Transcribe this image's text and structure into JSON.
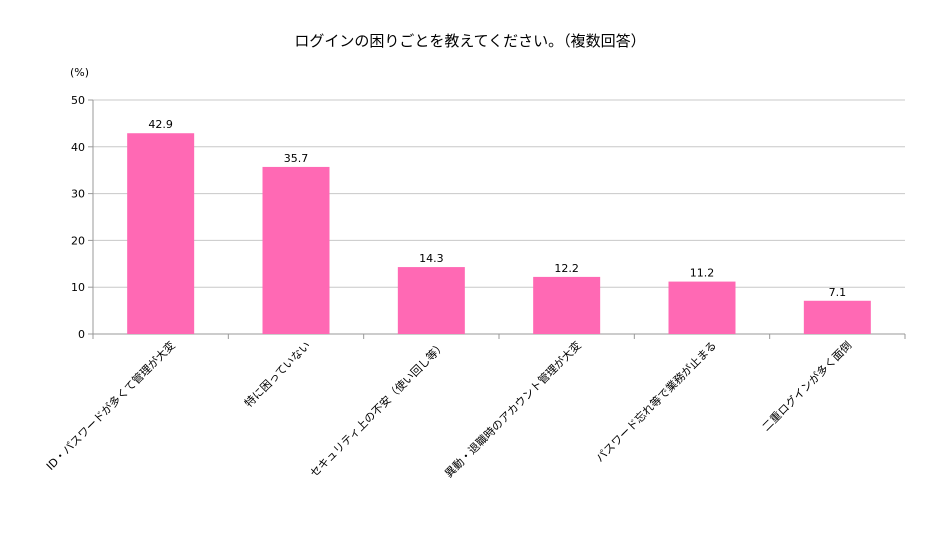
{
  "chart_data": {
    "type": "bar",
    "title": "ログインの困りごとを教えてください。（複数回答）",
    "ylabel": "(%)",
    "xlabel": "",
    "ylim": [
      0,
      50
    ],
    "yticks": [
      0,
      10,
      20,
      30,
      40,
      50
    ],
    "grid": true,
    "categories": [
      "ID・パスワードが多くて管理が大変",
      "特に困っていない",
      "セキュリティ上の不安（使い回し等）",
      "異動・退職時のアカウント管理が大変",
      "パスワード忘れ等で業務が止まる",
      "二重ログインが多く面倒"
    ],
    "values": [
      42.9,
      35.7,
      14.3,
      12.2,
      11.2,
      7.1
    ],
    "data_labels": [
      "42.9",
      "35.7",
      "14.3",
      "12.2",
      "11.2",
      "7.1"
    ],
    "bar_color": "#ff69b4"
  }
}
